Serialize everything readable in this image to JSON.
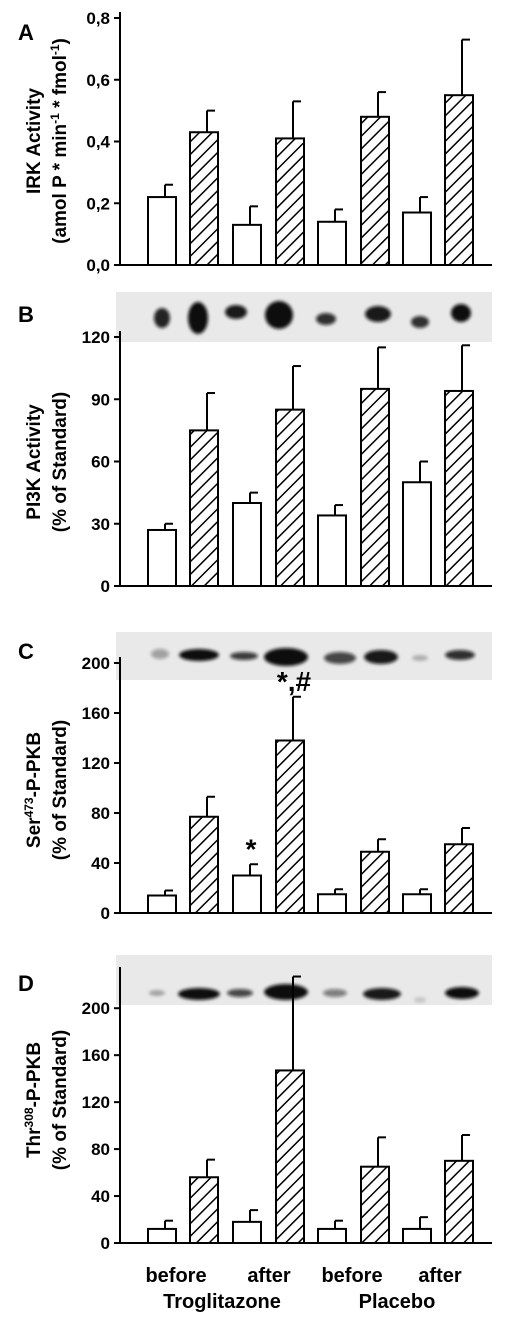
{
  "chart_data": [
    {
      "panel": "A",
      "type": "bar",
      "ylabel": [
        "IRK Activity",
        "(amol P * min",
        "-1",
        " * fmol",
        "-1",
        ")"
      ],
      "ylim": [
        0,
        0.8
      ],
      "ticks": [
        "0,0",
        "0,2",
        "0,4",
        "0,6",
        "0,8"
      ],
      "tick_values": [
        0,
        0.2,
        0.4,
        0.6,
        0.8
      ],
      "values": [
        0.22,
        0.43,
        0.13,
        0.41,
        0.14,
        0.48,
        0.17,
        0.55
      ],
      "errors": [
        0.04,
        0.07,
        0.06,
        0.12,
        0.04,
        0.08,
        0.05,
        0.18
      ],
      "hatched": [
        false,
        true,
        false,
        true,
        false,
        true,
        false,
        true
      ],
      "annotations": [],
      "blot": false
    },
    {
      "panel": "B",
      "type": "bar",
      "ylabel": [
        "PI3K Activity",
        "(% of Standard)"
      ],
      "ylim": [
        0,
        120
      ],
      "ticks": [
        "0",
        "30",
        "60",
        "90",
        "120"
      ],
      "tick_values": [
        0,
        30,
        60,
        90,
        120
      ],
      "values": [
        27,
        75,
        40,
        85,
        34,
        95,
        50,
        94
      ],
      "errors": [
        3,
        18,
        5,
        21,
        5,
        20,
        10,
        22
      ],
      "hatched": [
        false,
        true,
        false,
        true,
        false,
        true,
        false,
        true
      ],
      "annotations": [],
      "blot": true
    },
    {
      "panel": "C",
      "type": "bar",
      "ylabel": [
        "Ser",
        "473",
        "-P-PKB",
        "(% of Standard)"
      ],
      "ylim": [
        0,
        200
      ],
      "ticks": [
        "0",
        "40",
        "80",
        "120",
        "160",
        "200"
      ],
      "tick_values": [
        0,
        40,
        80,
        120,
        160,
        200
      ],
      "values": [
        14,
        77,
        30,
        138,
        15,
        49,
        15,
        55
      ],
      "errors": [
        4,
        16,
        9,
        35,
        4,
        10,
        4,
        13
      ],
      "hatched": [
        false,
        true,
        false,
        true,
        false,
        true,
        false,
        true
      ],
      "annotations": [
        {
          "bar": 2,
          "text": "*"
        },
        {
          "bar": 3,
          "text": "*,#"
        }
      ],
      "blot": true
    },
    {
      "panel": "D",
      "type": "bar",
      "ylabel": [
        "Thr",
        "308",
        "-P-PKB",
        "(% of Standard)"
      ],
      "ylim": [
        0,
        230
      ],
      "ticks": [
        "0",
        "40",
        "80",
        "120",
        "160",
        "200"
      ],
      "tick_values": [
        0,
        40,
        80,
        120,
        160,
        200
      ],
      "values": [
        12,
        56,
        18,
        147,
        12,
        65,
        12,
        70
      ],
      "errors": [
        7,
        15,
        10,
        80,
        7,
        25,
        10,
        22
      ],
      "hatched": [
        false,
        true,
        false,
        true,
        false,
        true,
        false,
        true
      ],
      "annotations": [],
      "blot": true
    }
  ],
  "x_labels": {
    "groups": [
      "before",
      "after",
      "before",
      "after"
    ],
    "treatments": [
      "Troglitazone",
      "Placebo"
    ]
  }
}
